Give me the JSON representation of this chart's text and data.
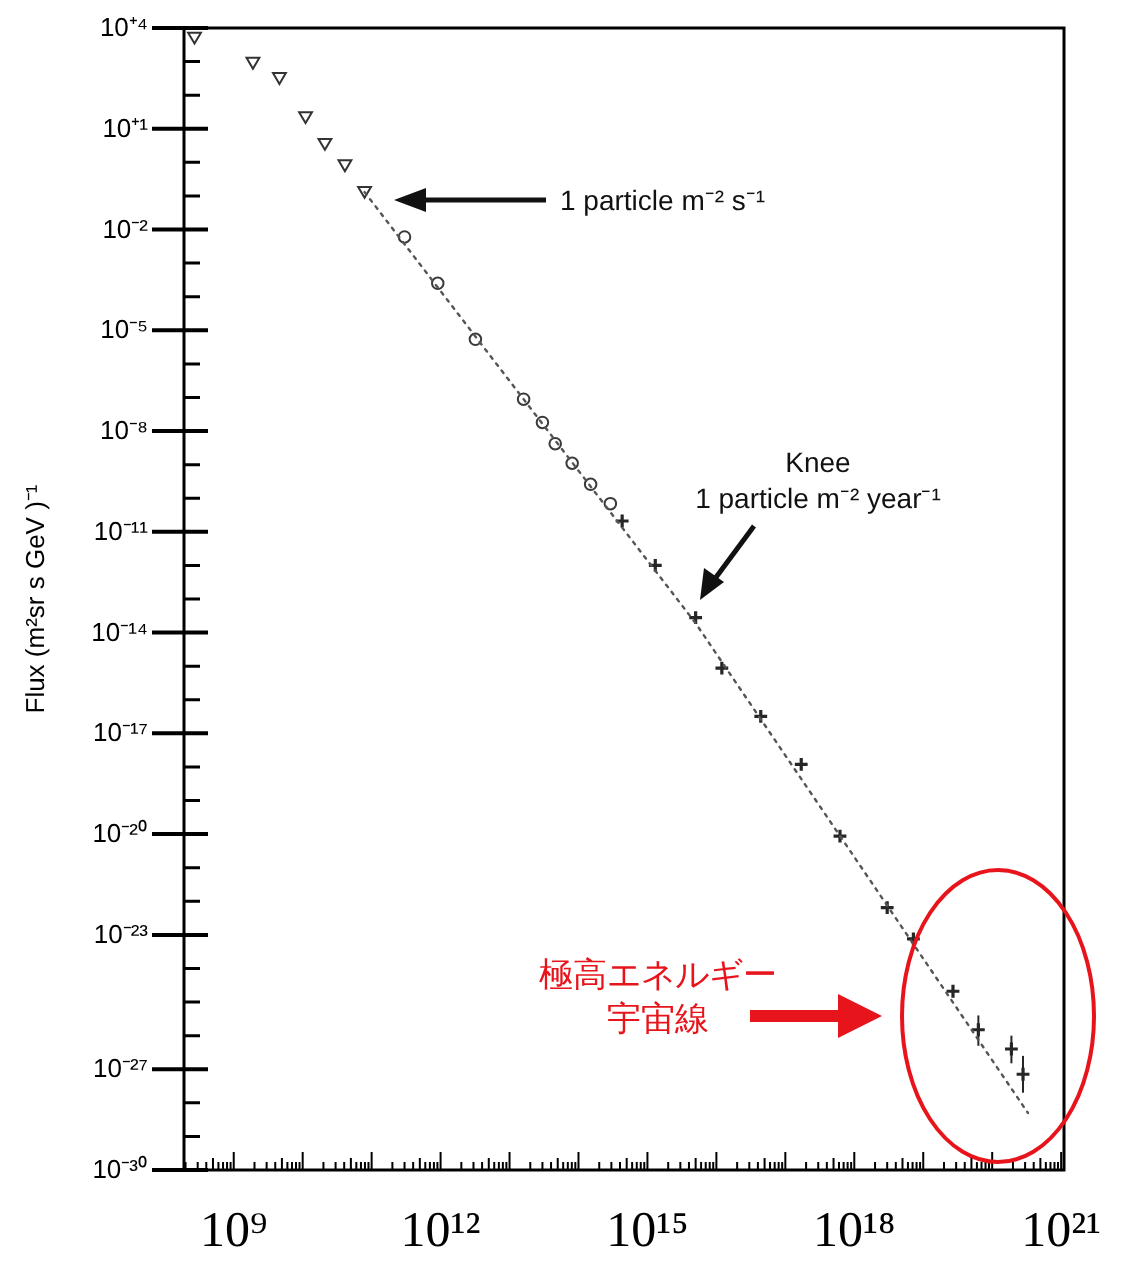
{
  "chart_data": {
    "type": "scatter",
    "ylabel": "Flux (m²sr s GeV )⁻¹",
    "log": "xy",
    "grid": false,
    "xlim": [
      190000000.0,
      1.1e+21
    ],
    "ylim": [
      1e-30,
      10000.0
    ],
    "xticks": [
      {
        "value": 1000000000.0,
        "label": "10⁹"
      },
      {
        "value": 1000000000000.0,
        "label": "10¹²"
      },
      {
        "value": 1000000000000000.0,
        "label": "10¹⁵"
      },
      {
        "value": 1e+18,
        "label": "10¹⁸"
      },
      {
        "value": 1e+21,
        "label": "10²¹"
      }
    ],
    "yticks": [
      {
        "value": 10000.0,
        "label": "10⁺⁴"
      },
      {
        "value": 10.0,
        "label": "10⁺¹"
      },
      {
        "value": 0.01,
        "label": "10⁻²"
      },
      {
        "value": 1e-05,
        "label": "10⁻⁵"
      },
      {
        "value": 1e-08,
        "label": "10⁻⁸"
      },
      {
        "value": 1e-11,
        "label": "10⁻¹¹"
      },
      {
        "value": 1e-14,
        "label": "10⁻¹⁴"
      },
      {
        "value": 1e-17,
        "label": "10⁻¹⁷"
      },
      {
        "value": 1e-20,
        "label": "10⁻²⁰"
      },
      {
        "value": 1e-23,
        "label": "10⁻²³"
      },
      {
        "value": 1e-27,
        "label": "10⁻²⁷"
      },
      {
        "value": 1e-30,
        "label": "10⁻³⁰"
      }
    ],
    "series": [
      {
        "type": "scatter",
        "marker": "triangle",
        "color": "#333333",
        "x": [
          270000000.0,
          1900000000.0,
          4600000000.0,
          11000000000.0,
          21000000000.0,
          41000000000.0,
          79000000000.0
        ],
        "values": [
          5100.0,
          910.0,
          320.0,
          22,
          3.5,
          0.81,
          0.13
        ]
      },
      {
        "type": "scatter",
        "marker": "circle",
        "color": "#3a3a3a",
        "x": [
          300000000000.0,
          910000000000.0,
          3200000000000.0,
          16000000000000.0,
          30000000000000.0,
          46000000000000.0,
          81000000000000.0,
          150000000000000.0,
          290000000000000.0
        ],
        "values": [
          0.006,
          0.00025,
          5.4e-06,
          8.9e-08,
          1.8e-08,
          4.2e-09,
          1.1e-09,
          2.6e-10,
          6.9e-11
        ]
      },
      {
        "type": "scatter",
        "marker": "cross",
        "color": "#262626",
        "x": [
          430000000000000.0,
          1300000000000000.0,
          5000000000000000.0,
          1.2e+16,
          4.4e+16,
          1.7e+17,
          6.2e+17,
          3e+18,
          7.2e+18,
          2.7e+19,
          6.3e+19,
          1.9e+20,
          2.8e+20
        ],
        "values": [
          2.1e-11,
          1e-12,
          2.8e-14,
          8.7e-16,
          3.2e-17,
          1.2e-18,
          8.7e-21,
          6.5e-23,
          7.6e-24,
          2.1e-25,
          1.5e-26,
          4e-27,
          7.1e-28
        ],
        "errors": [
          null,
          null,
          null,
          null,
          null,
          null,
          null,
          null,
          null,
          null,
          [
            5e-27,
            4e-26
          ],
          [
            1.5e-27,
            1e-26
          ],
          [
            2e-28,
            2.5e-27
          ]
        ]
      },
      {
        "type": "line",
        "line_style": "dotted",
        "marker": "none",
        "color": "#555555",
        "x": [
          79000000000.0,
          5000000000000000.0,
          3.3e+20
        ],
        "values": [
          0.13,
          1.9e-14,
          5e-29
        ]
      }
    ],
    "annotations": [
      "1 particle m⁻² s⁻¹",
      "Knee\n1 particle m⁻² year⁻¹",
      "極高エネルギー宇宙線"
    ]
  }
}
